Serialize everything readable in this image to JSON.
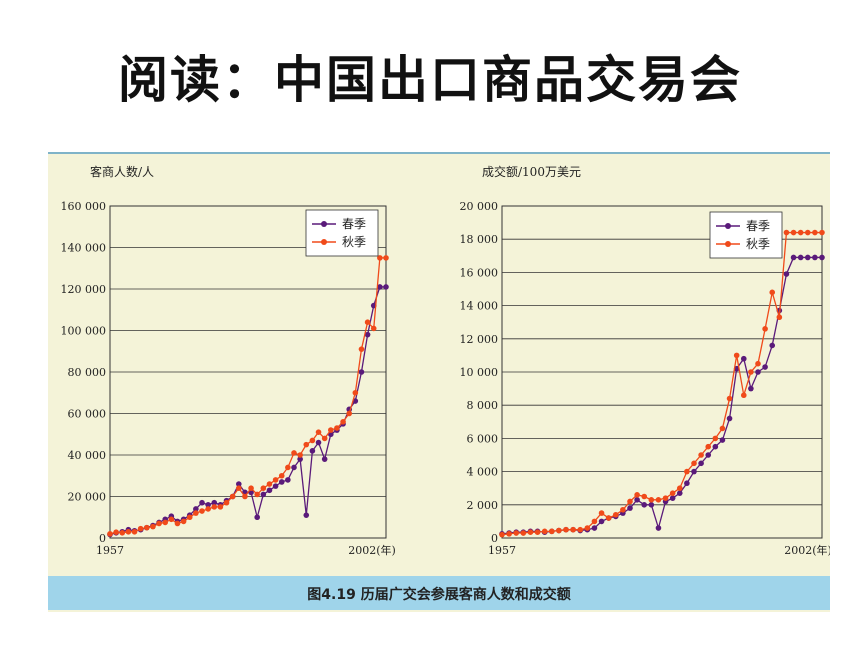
{
  "slide": {
    "title": "阅读：中国出口商品交易会",
    "caption": "图4.19   历届广交会参展客商人数和成交额"
  },
  "colors": {
    "spring": "#5a1a7a",
    "autumn": "#f04a1a",
    "panel": "#f4f3d8",
    "caption_strip": "#9fd4ea"
  },
  "chart_data": [
    {
      "type": "line",
      "ylabel": "客商人数/人",
      "xlabel": "(年)",
      "x_tick_labels": [
        "1957",
        "2002(年)"
      ],
      "y_tick_labels": [
        "0",
        "20 000",
        "40 000",
        "60 000",
        "80 000",
        "100 000",
        "120 000",
        "140 000",
        "160 000"
      ],
      "ylim": [
        0,
        160000
      ],
      "xlim": [
        1957,
        2002
      ],
      "grid": true,
      "legend_position": "top-right",
      "x": [
        1957,
        1958,
        1959,
        1960,
        1961,
        1962,
        1963,
        1964,
        1965,
        1966,
        1967,
        1968,
        1969,
        1970,
        1971,
        1972,
        1973,
        1974,
        1975,
        1976,
        1977,
        1978,
        1979,
        1980,
        1981,
        1982,
        1983,
        1984,
        1985,
        1986,
        1987,
        1988,
        1989,
        1990,
        1991,
        1992,
        1993,
        1994,
        1995,
        1996,
        1997,
        1998,
        1999,
        2000,
        2001,
        2002
      ],
      "series": [
        {
          "name": "春季",
          "values": [
            1700,
            2500,
            3000,
            4000,
            3500,
            4000,
            5000,
            6000,
            7500,
            9000,
            10500,
            8000,
            9000,
            11000,
            14000,
            17000,
            16000,
            17000,
            16000,
            18000,
            20000,
            26000,
            22000,
            22000,
            10000,
            21000,
            23000,
            25000,
            27000,
            28000,
            34000,
            38000,
            11000,
            42000,
            46000,
            38000,
            50000,
            52000,
            55000,
            62000,
            66000,
            80000,
            98000,
            112000,
            121000,
            121000
          ]
        },
        {
          "name": "秋季",
          "values": [
            2000,
            2800,
            2500,
            3000,
            3000,
            4500,
            5000,
            5500,
            7000,
            7500,
            9000,
            7000,
            8000,
            10000,
            12000,
            13000,
            14000,
            15000,
            15000,
            17000,
            20000,
            24000,
            20000,
            24000,
            21000,
            24000,
            26000,
            28000,
            30000,
            34000,
            41000,
            40000,
            45000,
            47000,
            51000,
            48000,
            52000,
            53000,
            56000,
            60000,
            70000,
            91000,
            104000,
            101000,
            135000,
            135000
          ]
        }
      ]
    },
    {
      "type": "line",
      "ylabel": "成交额/100万美元",
      "xlabel": "(年)",
      "x_tick_labels": [
        "1957",
        "2002(年)"
      ],
      "y_tick_labels": [
        "0",
        "2 000",
        "4 000",
        "6 000",
        "8 000",
        "10 000",
        "12 000",
        "14 000",
        "16 000",
        "18 000",
        "20 000"
      ],
      "ylim": [
        0,
        20000
      ],
      "xlim": [
        1957,
        2002
      ],
      "grid": true,
      "legend_position": "top-right",
      "x": [
        1957,
        1958,
        1959,
        1960,
        1961,
        1962,
        1963,
        1964,
        1965,
        1966,
        1967,
        1968,
        1969,
        1970,
        1971,
        1972,
        1973,
        1974,
        1975,
        1976,
        1977,
        1978,
        1979,
        1980,
        1981,
        1982,
        1983,
        1984,
        1985,
        1986,
        1987,
        1988,
        1989,
        1990,
        1991,
        1992,
        1993,
        1994,
        1995,
        1996,
        1997,
        1998,
        1999,
        2000,
        2001,
        2002
      ],
      "series": [
        {
          "name": "春季",
          "values": [
            250,
            300,
            350,
            350,
            400,
            400,
            350,
            400,
            450,
            500,
            500,
            450,
            500,
            600,
            1000,
            1200,
            1300,
            1500,
            1800,
            2300,
            2000,
            2000,
            600,
            2200,
            2400,
            2700,
            3300,
            4000,
            4500,
            5000,
            5500,
            5900,
            7200,
            10200,
            10800,
            9000,
            10000,
            10300,
            11600,
            13700,
            15900,
            16900,
            16900,
            16900,
            16900,
            16900
          ]
        },
        {
          "name": "秋季",
          "values": [
            200,
            250,
            300,
            300,
            350,
            350,
            400,
            400,
            450,
            500,
            500,
            500,
            600,
            1000,
            1500,
            1200,
            1400,
            1700,
            2200,
            2600,
            2500,
            2300,
            2300,
            2400,
            2700,
            3000,
            4000,
            4500,
            5000,
            5500,
            6000,
            6600,
            8400,
            11000,
            8600,
            10000,
            10500,
            12600,
            14800,
            13300,
            18400,
            18400,
            18400,
            18400,
            18400,
            18400
          ]
        }
      ]
    }
  ]
}
